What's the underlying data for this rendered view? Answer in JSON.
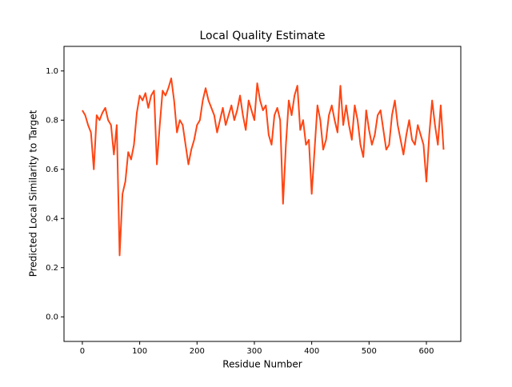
{
  "chart_data": {
    "type": "line",
    "title": "Local Quality Estimate",
    "x_label": "Residue Number",
    "y_label": "Predicted Local Similarity to Target",
    "xlim": [
      -32,
      660
    ],
    "ylim": [
      -0.1,
      1.1
    ],
    "xticks": [
      0,
      100,
      200,
      300,
      400,
      500,
      600
    ],
    "yticks": [
      {
        "value": 0,
        "label": "0.0"
      },
      0.2,
      0.4,
      0.6,
      0.8,
      {
        "value": 1,
        "label": "1.0"
      }
    ],
    "x": [
      0,
      5,
      10,
      15,
      20,
      25,
      30,
      35,
      40,
      45,
      50,
      55,
      60,
      65,
      70,
      75,
      80,
      85,
      90,
      95,
      100,
      105,
      110,
      115,
      120,
      125,
      130,
      135,
      140,
      145,
      150,
      155,
      160,
      165,
      170,
      175,
      180,
      185,
      190,
      195,
      200,
      205,
      210,
      215,
      220,
      225,
      230,
      235,
      240,
      245,
      250,
      255,
      260,
      265,
      270,
      275,
      280,
      285,
      290,
      295,
      300,
      305,
      310,
      315,
      320,
      325,
      330,
      335,
      340,
      345,
      350,
      355,
      360,
      365,
      370,
      375,
      380,
      385,
      390,
      395,
      400,
      405,
      410,
      415,
      420,
      425,
      430,
      435,
      440,
      445,
      450,
      455,
      460,
      465,
      470,
      475,
      480,
      485,
      490,
      495,
      500,
      505,
      510,
      515,
      520,
      525,
      530,
      535,
      540,
      545,
      550,
      555,
      560,
      565,
      570,
      575,
      580,
      585,
      590,
      595,
      600,
      605,
      610,
      615,
      620,
      625,
      630
    ],
    "series": [
      {
        "color": "#ff4513",
        "values": [
          0.84,
          0.82,
          0.78,
          0.75,
          0.6,
          0.82,
          0.8,
          0.83,
          0.85,
          0.8,
          0.78,
          0.66,
          0.78,
          0.25,
          0.5,
          0.55,
          0.67,
          0.64,
          0.7,
          0.83,
          0.9,
          0.88,
          0.91,
          0.85,
          0.9,
          0.92,
          0.62,
          0.78,
          0.92,
          0.9,
          0.93,
          0.97,
          0.88,
          0.75,
          0.8,
          0.78,
          0.7,
          0.62,
          0.68,
          0.72,
          0.78,
          0.8,
          0.88,
          0.93,
          0.88,
          0.85,
          0.82,
          0.75,
          0.8,
          0.85,
          0.78,
          0.82,
          0.86,
          0.8,
          0.84,
          0.9,
          0.82,
          0.76,
          0.88,
          0.84,
          0.8,
          0.95,
          0.88,
          0.84,
          0.86,
          0.74,
          0.7,
          0.82,
          0.85,
          0.8,
          0.46,
          0.7,
          0.88,
          0.82,
          0.9,
          0.94,
          0.76,
          0.8,
          0.7,
          0.72,
          0.5,
          0.68,
          0.86,
          0.8,
          0.68,
          0.72,
          0.82,
          0.86,
          0.8,
          0.75,
          0.94,
          0.78,
          0.86,
          0.78,
          0.72,
          0.86,
          0.8,
          0.7,
          0.65,
          0.84,
          0.76,
          0.7,
          0.74,
          0.82,
          0.84,
          0.76,
          0.68,
          0.7,
          0.82,
          0.88,
          0.78,
          0.72,
          0.66,
          0.74,
          0.8,
          0.72,
          0.7,
          0.78,
          0.74,
          0.7,
          0.55,
          0.74,
          0.88,
          0.78,
          0.7,
          0.86,
          0.68
        ]
      }
    ]
  }
}
